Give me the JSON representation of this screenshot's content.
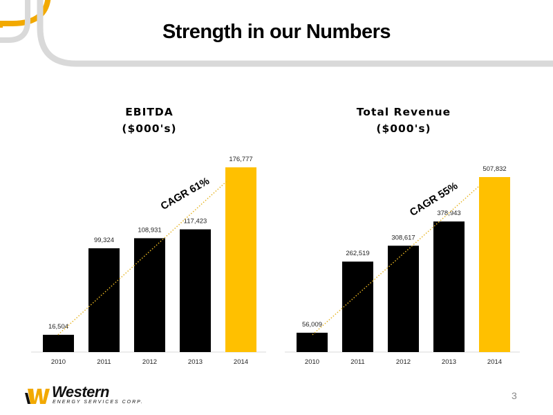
{
  "page": {
    "title": "Strength in our Numbers",
    "page_number": "3"
  },
  "logo": {
    "name": "Western",
    "subtitle": "ENERGY SERVICES CORP."
  },
  "colors": {
    "bar": "#000000",
    "highlight": "#FFC000",
    "trend": "#E6B422",
    "frame": "#D9D9D9",
    "accent": "#F2A900"
  },
  "chart_data": [
    {
      "type": "bar",
      "title_line1": "EBITDA",
      "title_line2": "($000's)",
      "categories": [
        "2010",
        "2011",
        "2012",
        "2013",
        "2014"
      ],
      "values": [
        16504,
        99324,
        108931,
        117423,
        176777
      ],
      "value_labels": [
        "16,504",
        "99,324",
        "108,931",
        "117,423",
        "176,777"
      ],
      "highlight_index": 4,
      "annotation": "CAGR 61%",
      "ylim": [
        0,
        182000
      ]
    },
    {
      "type": "bar",
      "title_line1": "Total Revenue",
      "title_line2": "($000's)",
      "categories": [
        "2010",
        "2011",
        "2012",
        "2013",
        "2014"
      ],
      "values": [
        56009,
        262519,
        308617,
        378943,
        507832
      ],
      "value_labels": [
        "56,009",
        "262,519",
        "308,617",
        "378,943",
        "507,832"
      ],
      "highlight_index": 4,
      "annotation": "CAGR 55%",
      "ylim": [
        0,
        552000
      ]
    }
  ]
}
